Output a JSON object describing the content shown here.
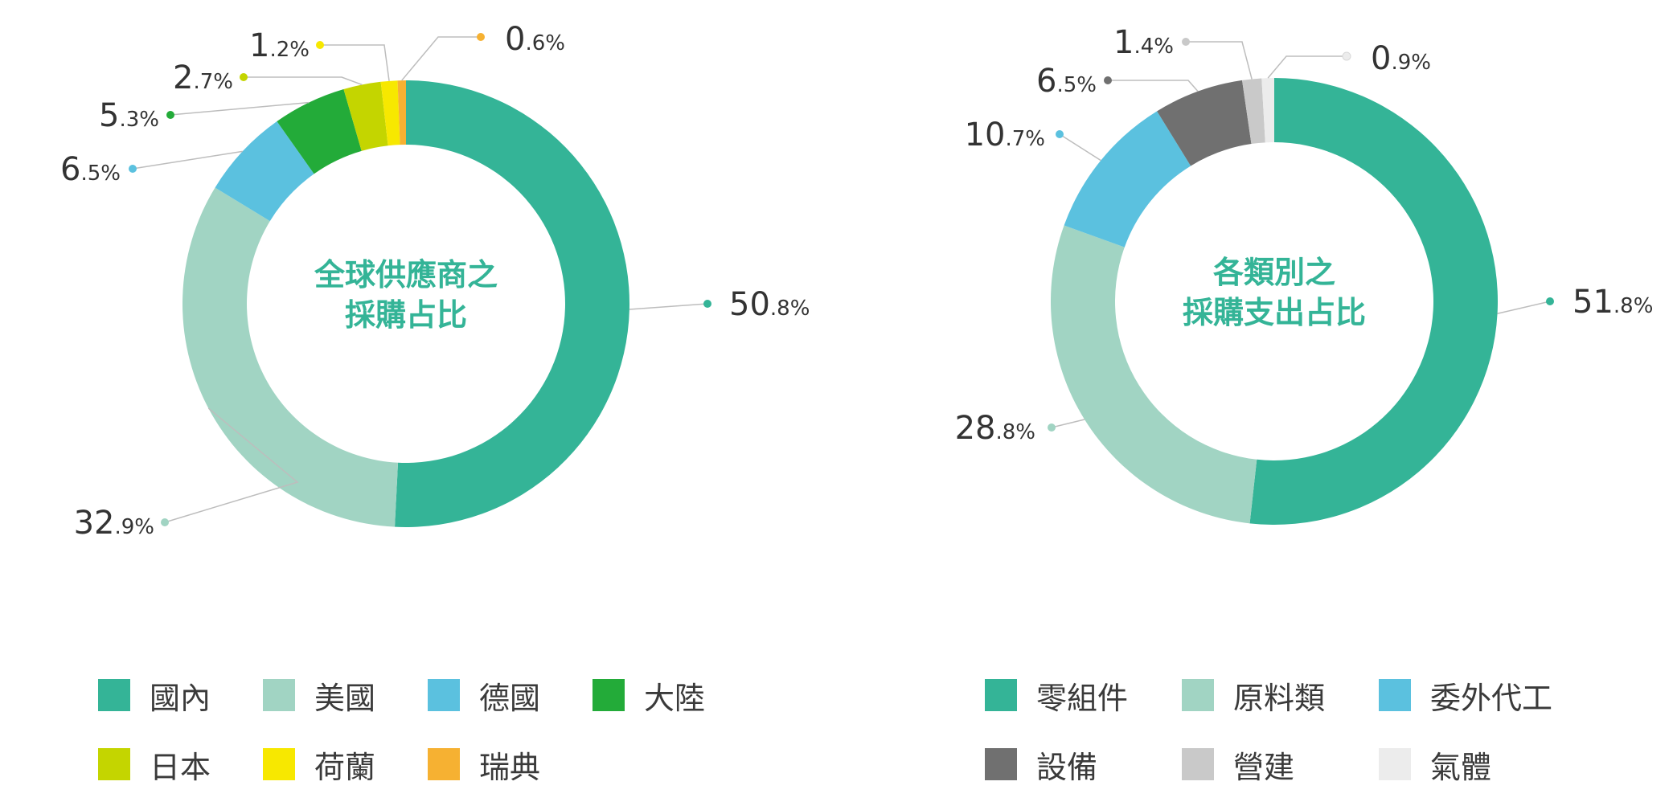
{
  "chart_data": [
    {
      "type": "pie",
      "title": "全球供應商之\n採購占比",
      "title_lines": [
        "全球供應商之",
        "採購占比"
      ],
      "title_color": "#34b497",
      "slices": [
        {
          "label": "國內",
          "value": 50.8,
          "value_major": "50",
          "value_minor": ".8%",
          "color": "#34b497"
        },
        {
          "label": "美國",
          "value": 32.9,
          "value_major": "32",
          "value_minor": ".9%",
          "color": "#a1d4c3"
        },
        {
          "label": "德國",
          "value": 6.5,
          "value_major": "6",
          "value_minor": ".5%",
          "color": "#5bc1df"
        },
        {
          "label": "大陸",
          "value": 5.3,
          "value_major": "5",
          "value_minor": ".3%",
          "color": "#23ab39"
        },
        {
          "label": "日本",
          "value": 2.7,
          "value_major": "2",
          "value_minor": ".7%",
          "color": "#c4d500"
        },
        {
          "label": "荷蘭",
          "value": 1.2,
          "value_major": "1",
          "value_minor": ".2%",
          "color": "#f7e800"
        },
        {
          "label": "瑞典",
          "value": 0.6,
          "value_major": "0",
          "value_minor": ".6%",
          "color": "#f6b132"
        }
      ]
    },
    {
      "type": "pie",
      "title": "各類別之\n採購支出占比",
      "title_lines": [
        "各類別之",
        "採購支出占比"
      ],
      "title_color": "#34b497",
      "slices": [
        {
          "label": "零組件",
          "value": 51.8,
          "value_major": "51",
          "value_minor": ".8%",
          "color": "#34b497"
        },
        {
          "label": "原料類",
          "value": 28.8,
          "value_major": "28",
          "value_minor": ".8%",
          "color": "#a1d4c3"
        },
        {
          "label": "委外代工",
          "value": 10.7,
          "value_major": "10",
          "value_minor": ".7%",
          "color": "#5bc1df"
        },
        {
          "label": "設備",
          "value": 6.5,
          "value_major": "6",
          "value_minor": ".5%",
          "color": "#707070"
        },
        {
          "label": "營建",
          "value": 1.4,
          "value_major": "1",
          "value_minor": ".4%",
          "color": "#c9c9c9"
        },
        {
          "label": "氣體",
          "value": 0.9,
          "value_major": "0",
          "value_minor": ".9%",
          "color": "#ececec"
        }
      ]
    }
  ]
}
